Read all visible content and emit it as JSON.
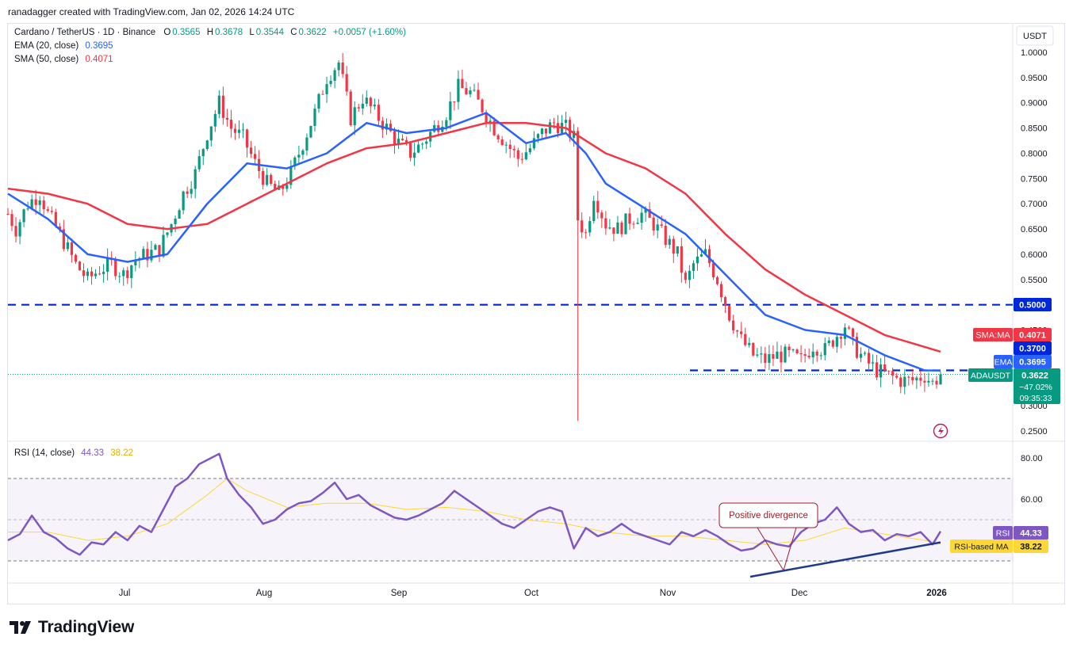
{
  "header": {
    "credit": "ranadagger created with TradingView.com, Jan 02, 2026 14:24 UTC"
  },
  "legend": {
    "symbol": "Cardano / TetherUS · 1D · Binance",
    "o_label": "O",
    "o_value": "0.3565",
    "h_label": "H",
    "h_value": "0.3678",
    "l_label": "L",
    "l_value": "0.3544",
    "c_label": "C",
    "c_value": "0.3622",
    "change": "+0.0057 (+1.60%)",
    "ema_label": "EMA (20, close)",
    "ema_value": "0.3695",
    "sma_label": "SMA (50, close)",
    "sma_value": "0.4071",
    "rsi_label": "RSI (14, close)",
    "rsi_value": "44.33",
    "rsi_ma_value": "38.22"
  },
  "price_axis": {
    "currency": "USDT",
    "ticks": [
      "1.0000",
      "0.9500",
      "0.9000",
      "0.8500",
      "0.8000",
      "0.7500",
      "0.7000",
      "0.6500",
      "0.6000",
      "0.5500",
      "0.4500",
      "0.3000",
      "0.2500"
    ],
    "tick_values": [
      1.0,
      0.95,
      0.9,
      0.85,
      0.8,
      0.75,
      0.7,
      0.65,
      0.6,
      0.55,
      0.45,
      0.3,
      0.25
    ],
    "labels": {
      "level_high": "0.5000",
      "sma_tag": "SMA:MA",
      "sma_value": "0.4071",
      "level_low": "0.3700",
      "ema_tag": "EMA",
      "ema_value": "0.3695",
      "symbol_tag": "ADAUSDT",
      "last_price": "0.3622",
      "pct_change": "−47.02%",
      "countdown": "09:35:33"
    }
  },
  "rsi_axis": {
    "ticks": [
      "80.00",
      "60.00"
    ],
    "tick_values": [
      80,
      60
    ],
    "rsi_tag": "RSI",
    "rsi_value": "44.33",
    "ma_tag": "RSI-based MA",
    "ma_value": "38.22"
  },
  "time_axis": {
    "labels": [
      "Jul",
      "Aug",
      "Sep",
      "Oct",
      "Nov",
      "Dec",
      "2026"
    ]
  },
  "annotation": {
    "text": "Positive divergence"
  },
  "brand": {
    "name": "TradingView"
  },
  "colors": {
    "up": "#089981",
    "down": "#f23645",
    "ema": "#2962ff",
    "sma": "#f23645",
    "rsi": "#7e57c2",
    "rsi_ma": "#fdd835",
    "level": "#0026d9",
    "trendline": "#1e3a8a"
  },
  "chart_data": [
    {
      "type": "candlestick",
      "title": "Cardano / TetherUS · 1D · Binance",
      "ylim": [
        0.22,
        1.05
      ],
      "x_labels": [
        "Jul",
        "Aug",
        "Sep",
        "Oct",
        "Nov",
        "Dec",
        "2026"
      ],
      "ohlc_last": {
        "open": 0.3565,
        "high": 0.3678,
        "low": 0.3544,
        "close": 0.3622
      },
      "price_path": [
        [
          0,
          0.68
        ],
        [
          2,
          0.65
        ],
        [
          5,
          0.7
        ],
        [
          8,
          0.72
        ],
        [
          10,
          0.68
        ],
        [
          13,
          0.64
        ],
        [
          17,
          0.58
        ],
        [
          20,
          0.55
        ],
        [
          23,
          0.57
        ],
        [
          26,
          0.58
        ],
        [
          29,
          0.56
        ],
        [
          32,
          0.59
        ],
        [
          35,
          0.6
        ],
        [
          38,
          0.61
        ],
        [
          41,
          0.66
        ],
        [
          44,
          0.72
        ],
        [
          47,
          0.76
        ],
        [
          50,
          0.84
        ],
        [
          53,
          0.9
        ],
        [
          56,
          0.85
        ],
        [
          59,
          0.83
        ],
        [
          62,
          0.78
        ],
        [
          65,
          0.74
        ],
        [
          68,
          0.72
        ],
        [
          71,
          0.76
        ],
        [
          74,
          0.82
        ],
        [
          77,
          0.88
        ],
        [
          80,
          0.95
        ],
        [
          83,
          0.98
        ],
        [
          86,
          0.87
        ],
        [
          89,
          0.91
        ],
        [
          92,
          0.88
        ],
        [
          95,
          0.85
        ],
        [
          98,
          0.82
        ],
        [
          101,
          0.8
        ],
        [
          104,
          0.82
        ],
        [
          107,
          0.85
        ],
        [
          110,
          0.88
        ],
        [
          113,
          0.93
        ],
        [
          116,
          0.92
        ],
        [
          119,
          0.89
        ],
        [
          122,
          0.85
        ],
        [
          125,
          0.82
        ],
        [
          128,
          0.79
        ],
        [
          131,
          0.81
        ],
        [
          134,
          0.84
        ],
        [
          137,
          0.86
        ],
        [
          140,
          0.85
        ],
        [
          142,
          0.83
        ],
        [
          143,
          0.67
        ],
        [
          145,
          0.64
        ],
        [
          147,
          0.72
        ],
        [
          150,
          0.66
        ],
        [
          153,
          0.65
        ],
        [
          156,
          0.67
        ],
        [
          159,
          0.68
        ],
        [
          162,
          0.66
        ],
        [
          165,
          0.63
        ],
        [
          168,
          0.6
        ],
        [
          170,
          0.54
        ],
        [
          172,
          0.58
        ],
        [
          175,
          0.6
        ],
        [
          178,
          0.55
        ],
        [
          181,
          0.48
        ],
        [
          184,
          0.43
        ],
        [
          187,
          0.4
        ],
        [
          190,
          0.39
        ],
        [
          193,
          0.4
        ],
        [
          196,
          0.4
        ],
        [
          199,
          0.39
        ],
        [
          202,
          0.42
        ],
        [
          205,
          0.41
        ],
        [
          208,
          0.44
        ],
        [
          210,
          0.46
        ],
        [
          212,
          0.42
        ],
        [
          215,
          0.39
        ],
        [
          218,
          0.37
        ],
        [
          221,
          0.36
        ],
        [
          224,
          0.35
        ],
        [
          227,
          0.35
        ],
        [
          230,
          0.36
        ],
        [
          232,
          0.345
        ],
        [
          234,
          0.362
        ]
      ],
      "ema_20_path": [
        [
          0,
          0.72
        ],
        [
          10,
          0.67
        ],
        [
          20,
          0.6
        ],
        [
          30,
          0.585
        ],
        [
          40,
          0.6
        ],
        [
          50,
          0.7
        ],
        [
          60,
          0.78
        ],
        [
          70,
          0.77
        ],
        [
          80,
          0.8
        ],
        [
          90,
          0.86
        ],
        [
          100,
          0.84
        ],
        [
          110,
          0.85
        ],
        [
          120,
          0.88
        ],
        [
          130,
          0.82
        ],
        [
          140,
          0.84
        ],
        [
          145,
          0.8
        ],
        [
          150,
          0.74
        ],
        [
          160,
          0.69
        ],
        [
          170,
          0.64
        ],
        [
          180,
          0.56
        ],
        [
          190,
          0.48
        ],
        [
          200,
          0.45
        ],
        [
          210,
          0.44
        ],
        [
          220,
          0.4
        ],
        [
          230,
          0.37
        ],
        [
          234,
          0.3695
        ]
      ],
      "sma_50_path": [
        [
          0,
          0.73
        ],
        [
          10,
          0.72
        ],
        [
          20,
          0.7
        ],
        [
          30,
          0.66
        ],
        [
          40,
          0.65
        ],
        [
          50,
          0.66
        ],
        [
          60,
          0.7
        ],
        [
          70,
          0.74
        ],
        [
          80,
          0.78
        ],
        [
          90,
          0.81
        ],
        [
          100,
          0.82
        ],
        [
          110,
          0.84
        ],
        [
          120,
          0.86
        ],
        [
          130,
          0.86
        ],
        [
          140,
          0.85
        ],
        [
          150,
          0.8
        ],
        [
          160,
          0.77
        ],
        [
          170,
          0.72
        ],
        [
          180,
          0.64
        ],
        [
          190,
          0.57
        ],
        [
          200,
          0.52
        ],
        [
          210,
          0.48
        ],
        [
          220,
          0.44
        ],
        [
          234,
          0.4071
        ]
      ],
      "horizontal_levels": [
        0.5,
        0.37
      ]
    },
    {
      "type": "line",
      "title": "RSI (14, close)",
      "ylim": [
        30,
        90
      ],
      "series": [
        {
          "name": "RSI",
          "points": [
            [
              0,
              40
            ],
            [
              3,
              43
            ],
            [
              6,
              52
            ],
            [
              9,
              44
            ],
            [
              12,
              41
            ],
            [
              15,
              36
            ],
            [
              18,
              33
            ],
            [
              21,
              39
            ],
            [
              24,
              38
            ],
            [
              27,
              44
            ],
            [
              30,
              40
            ],
            [
              33,
              47
            ],
            [
              36,
              44
            ],
            [
              39,
              55
            ],
            [
              42,
              66
            ],
            [
              45,
              70
            ],
            [
              48,
              77
            ],
            [
              50,
              79
            ],
            [
              53,
              82
            ],
            [
              55,
              70
            ],
            [
              58,
              62
            ],
            [
              61,
              56
            ],
            [
              64,
              48
            ],
            [
              67,
              50
            ],
            [
              70,
              55
            ],
            [
              73,
              58
            ],
            [
              76,
              59
            ],
            [
              79,
              63
            ],
            [
              82,
              68
            ],
            [
              85,
              60
            ],
            [
              88,
              62
            ],
            [
              91,
              57
            ],
            [
              94,
              54
            ],
            [
              97,
              51
            ],
            [
              100,
              50
            ],
            [
              103,
              52
            ],
            [
              106,
              55
            ],
            [
              109,
              58
            ],
            [
              112,
              64
            ],
            [
              115,
              60
            ],
            [
              118,
              56
            ],
            [
              121,
              52
            ],
            [
              124,
              48
            ],
            [
              127,
              46
            ],
            [
              130,
              50
            ],
            [
              133,
              54
            ],
            [
              136,
              56
            ],
            [
              139,
              54
            ],
            [
              142,
              36
            ],
            [
              145,
              46
            ],
            [
              148,
              42
            ],
            [
              151,
              44
            ],
            [
              154,
              48
            ],
            [
              157,
              44
            ],
            [
              160,
              42
            ],
            [
              163,
              40
            ],
            [
              166,
              38
            ],
            [
              169,
              44
            ],
            [
              172,
              42
            ],
            [
              175,
              45
            ],
            [
              178,
              42
            ],
            [
              181,
              38
            ],
            [
              184,
              35
            ],
            [
              187,
              36
            ],
            [
              190,
              40
            ],
            [
              193,
              38
            ],
            [
              196,
              37
            ],
            [
              199,
              44
            ],
            [
              202,
              48
            ],
            [
              205,
              50
            ],
            [
              208,
              56
            ],
            [
              211,
              48
            ],
            [
              214,
              44
            ],
            [
              217,
              45
            ],
            [
              220,
              40
            ],
            [
              223,
              43
            ],
            [
              226,
              42
            ],
            [
              229,
              44
            ],
            [
              232,
              38
            ],
            [
              234,
              44.33
            ]
          ]
        },
        {
          "name": "RSI-based MA",
          "points": [
            [
              0,
              44
            ],
            [
              10,
              44
            ],
            [
              20,
              40
            ],
            [
              30,
              42
            ],
            [
              40,
              48
            ],
            [
              50,
              62
            ],
            [
              55,
              70
            ],
            [
              60,
              64
            ],
            [
              70,
              56
            ],
            [
              80,
              58
            ],
            [
              90,
              58
            ],
            [
              100,
              55
            ],
            [
              110,
              56
            ],
            [
              120,
              54
            ],
            [
              130,
              50
            ],
            [
              140,
              48
            ],
            [
              150,
              44
            ],
            [
              160,
              42
            ],
            [
              170,
              42
            ],
            [
              180,
              40
            ],
            [
              190,
              38
            ],
            [
              200,
              40
            ],
            [
              210,
              46
            ],
            [
              220,
              43
            ],
            [
              230,
              40
            ],
            [
              234,
              38.22
            ]
          ]
        }
      ],
      "bands": [
        70,
        30
      ],
      "divergence_line": [
        [
          187,
          33.5
        ],
        [
          234,
          39
        ]
      ],
      "divergence_label": "Positive divergence"
    }
  ]
}
